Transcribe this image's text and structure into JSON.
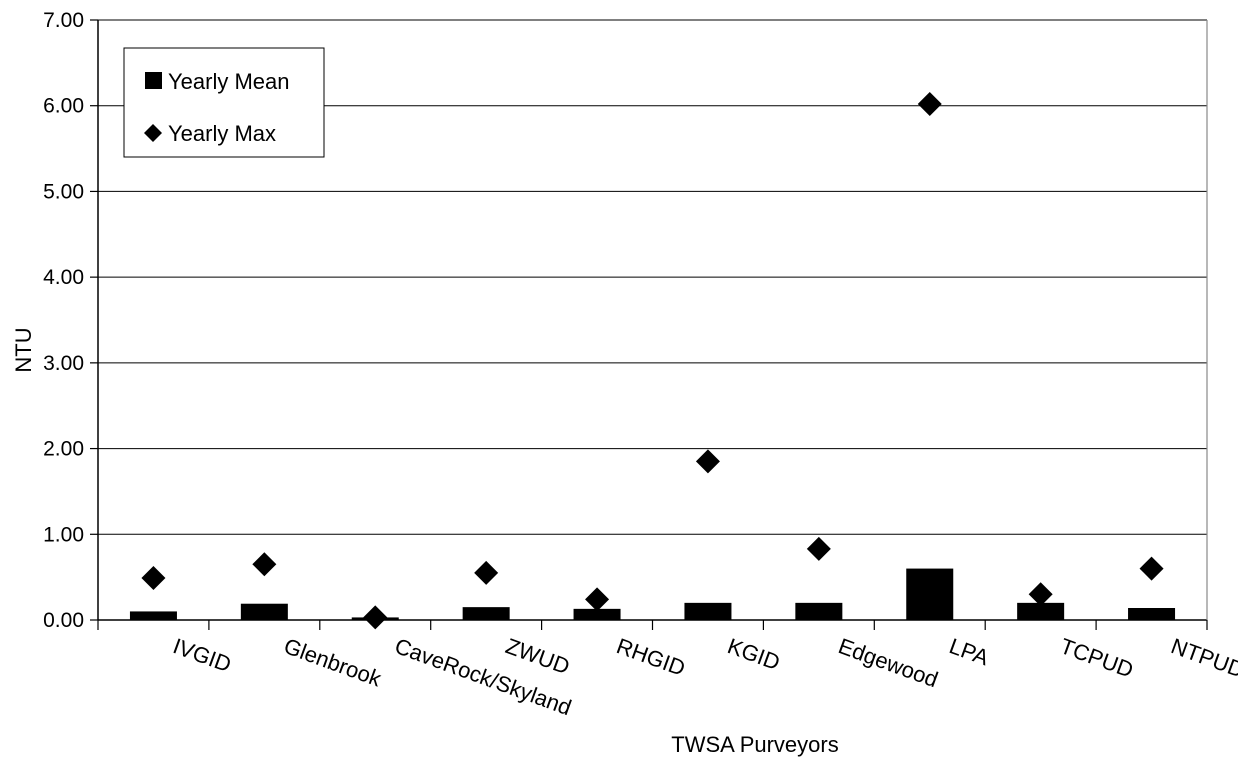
{
  "chart_data": {
    "type": "bar",
    "title": "",
    "xlabel": "TWSA Purveyors",
    "ylabel": "NTU",
    "ylim": [
      0,
      7
    ],
    "yticks": [
      "0.00",
      "1.00",
      "2.00",
      "3.00",
      "4.00",
      "5.00",
      "6.00",
      "7.00"
    ],
    "grid": true,
    "legend_position": "top-left",
    "categories": [
      "IVGID",
      "Glenbrook",
      "CaveRock/Skyland",
      "ZWUD",
      "RHGID",
      "KGID",
      "Edgewood",
      "LPA",
      "TCPUD",
      "NTPUD"
    ],
    "series": [
      {
        "name": "Yearly Mean",
        "kind": "bar",
        "marker": "square",
        "color": "#000000",
        "values": [
          0.1,
          0.19,
          0.03,
          0.15,
          0.13,
          0.2,
          0.2,
          0.6,
          0.2,
          0.14
        ]
      },
      {
        "name": "Yearly Max",
        "kind": "scatter",
        "marker": "diamond",
        "color": "#000000",
        "values": [
          0.49,
          0.65,
          0.03,
          0.55,
          0.24,
          1.85,
          0.83,
          6.02,
          0.3,
          0.6
        ]
      }
    ]
  }
}
